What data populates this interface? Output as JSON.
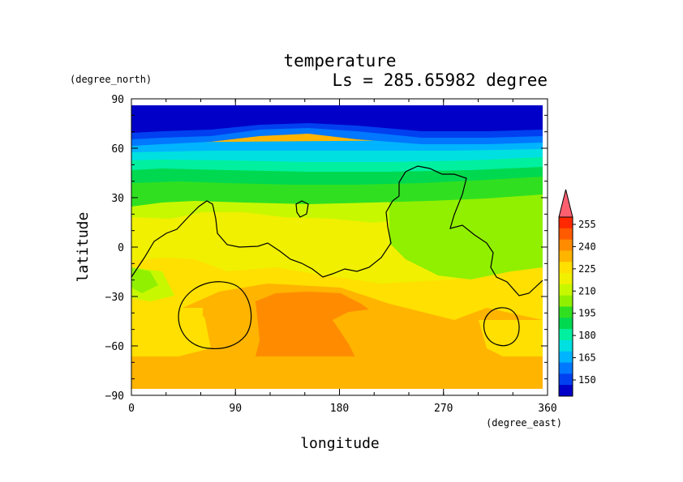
{
  "chart_data": {
    "type": "heatmap",
    "title": "temperature",
    "subtitle": "Ls = 285.65982 degree",
    "xlabel": "longitude",
    "ylabel": "latitude",
    "x_unit": "(degree_east)",
    "y_unit": "(degree_north)",
    "xlim": [
      0,
      360
    ],
    "ylim": [
      -90,
      90
    ],
    "x_ticks": [
      "0",
      "90",
      "180",
      "270",
      "360"
    ],
    "y_ticks": [
      "90",
      "60",
      "30",
      "0",
      "−30",
      "−60",
      "−90"
    ],
    "colorbar": {
      "tick_labels": [
        "255",
        "240",
        "225",
        "210",
        "195",
        "180",
        "165",
        "150"
      ],
      "colors": [
        "#0000c8",
        "#0040f0",
        "#0078ff",
        "#00b4ff",
        "#00e0e0",
        "#00f0a0",
        "#00d850",
        "#30e020",
        "#90f000",
        "#c8f800",
        "#f0f000",
        "#ffe000",
        "#ffb400",
        "#ff8c00",
        "#ff5a00",
        "#ff2800",
        "#ff6070"
      ]
    },
    "temperature_bands": [
      {
        "lat_range": [
          60,
          85
        ],
        "kelvin": "< 150"
      },
      {
        "lat_range": [
          40,
          60
        ],
        "kelvin": "165-190"
      },
      {
        "lat_range": [
          20,
          40
        ],
        "kelvin": "195-210"
      },
      {
        "lat_range": [
          -20,
          20
        ],
        "kelvin": "215-225"
      },
      {
        "lat_range": [
          -60,
          -20
        ],
        "kelvin": "225-235"
      },
      {
        "lat_range": [
          -75,
          -30
        ],
        "lon_range": [
          110,
          230
        ],
        "kelvin": "235-240"
      }
    ]
  }
}
